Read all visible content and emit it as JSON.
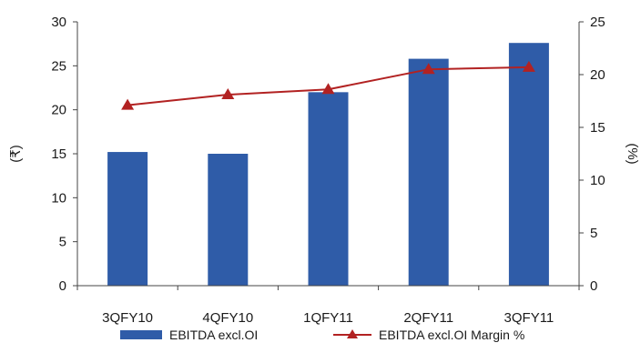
{
  "chart_data": {
    "type": "bar",
    "categories": [
      "3QFY10",
      "4QFY10",
      "1QFY11",
      "2QFY11",
      "3QFY11"
    ],
    "series": [
      {
        "name": "EBITDA excl.OI",
        "type": "bar",
        "axis": "left",
        "color": "#2f5ca8",
        "values": [
          15.2,
          15.0,
          22.0,
          25.8,
          27.6
        ]
      },
      {
        "name": "EBITDA excl.OI Margin %",
        "type": "line",
        "axis": "right",
        "color": "#b22222",
        "marker": "triangle",
        "values": [
          17.1,
          18.1,
          18.6,
          20.5,
          20.7
        ]
      }
    ],
    "left_axis": {
      "label": "(₹)",
      "ylim": [
        0,
        30
      ],
      "ticks": [
        "0",
        "5",
        "10",
        "15",
        "20",
        "25",
        "30"
      ]
    },
    "right_axis": {
      "label": "(%)",
      "ylim": [
        0,
        25
      ],
      "ticks": [
        "0",
        "5",
        "10",
        "15",
        "20",
        "25"
      ]
    },
    "grid": false,
    "legend_position": "bottom"
  }
}
